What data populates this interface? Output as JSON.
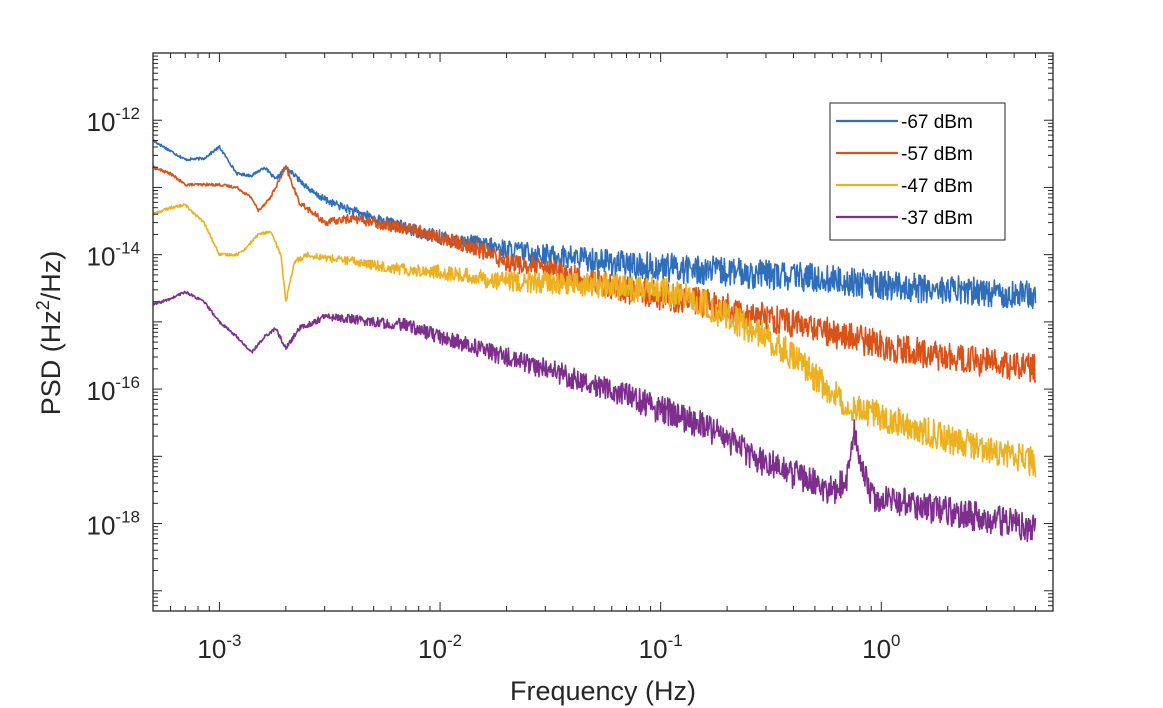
{
  "chart_data": {
    "type": "line",
    "title": "",
    "xlabel": "Frequency (Hz)",
    "ylabel_base": "PSD (Hz",
    "ylabel_sup": "2",
    "ylabel_tail": "/Hz)",
    "xscale": "log",
    "yscale": "log",
    "xlim": [
      0.0005,
      6.0
    ],
    "ylim": [
      5e-20,
      1e-11
    ],
    "x_ticks": [
      {
        "base": "10",
        "exp": "-3",
        "value": 0.001
      },
      {
        "base": "10",
        "exp": "-2",
        "value": 0.01
      },
      {
        "base": "10",
        "exp": "-1",
        "value": 0.1
      },
      {
        "base": "10",
        "exp": "0",
        "value": 1
      }
    ],
    "y_ticks": [
      {
        "base": "10",
        "exp": "-12",
        "value": 1e-12
      },
      {
        "base": "10",
        "exp": "-14",
        "value": 1e-14
      },
      {
        "base": "10",
        "exp": "-16",
        "value": 1e-16
      },
      {
        "base": "10",
        "exp": "-18",
        "value": 1e-18
      }
    ],
    "legend_position": "top-right",
    "grid": false,
    "series": [
      {
        "name": "-67 dBm",
        "color": "#2F6EBA",
        "x": [
          0.0005,
          0.0006,
          0.0007,
          0.00085,
          0.001,
          0.0012,
          0.0014,
          0.0016,
          0.0018,
          0.002,
          0.0023,
          0.0027,
          0.0032,
          0.004,
          0.005,
          0.007,
          0.01,
          0.015,
          0.02,
          0.03,
          0.05,
          0.07,
          0.1,
          0.15,
          0.2,
          0.3,
          0.5,
          0.7,
          1.0,
          1.5,
          2.0,
          3.0,
          5.0
        ],
        "y": [
          5e-13,
          3.5e-13,
          2.6e-13,
          2.7e-13,
          4e-13,
          1.6e-13,
          1.5e-13,
          2e-13,
          1.3e-13,
          2e-13,
          1.3e-13,
          8e-14,
          6e-14,
          4.5e-14,
          3.5e-14,
          2.5e-14,
          1.8e-14,
          1.4e-14,
          1.2e-14,
          1e-14,
          8.5e-15,
          7e-15,
          6.5e-15,
          6e-15,
          5.5e-15,
          5e-15,
          4.5e-15,
          4e-15,
          3.5e-15,
          3.2e-15,
          3e-15,
          2.8e-15,
          2.5e-15
        ]
      },
      {
        "name": "-57 dBm",
        "color": "#D95319",
        "x": [
          0.0005,
          0.0006,
          0.0007,
          0.00085,
          0.001,
          0.0012,
          0.0014,
          0.0015,
          0.0017,
          0.002,
          0.0023,
          0.0027,
          0.003,
          0.004,
          0.005,
          0.007,
          0.01,
          0.015,
          0.02,
          0.03,
          0.05,
          0.07,
          0.1,
          0.15,
          0.2,
          0.3,
          0.5,
          0.7,
          1.0,
          1.5,
          2.0,
          3.0,
          5.0
        ],
        "y": [
          2e-13,
          1.6e-13,
          1.1e-13,
          1.1e-13,
          1.1e-13,
          1e-13,
          7e-14,
          4.5e-14,
          7e-14,
          2e-13,
          6e-14,
          4e-14,
          3e-14,
          3.5e-14,
          3e-14,
          2.5e-14,
          1.8e-14,
          1.2e-14,
          8e-15,
          6e-15,
          4e-15,
          3e-15,
          2.5e-15,
          2e-15,
          1.6e-15,
          1.2e-15,
          8e-16,
          6e-16,
          4.5e-16,
          3.5e-16,
          3e-16,
          2.5e-16,
          2e-16
        ]
      },
      {
        "name": "-47 dBm",
        "color": "#EDB120",
        "x": [
          0.0005,
          0.0006,
          0.0007,
          0.00085,
          0.001,
          0.0012,
          0.0013,
          0.0015,
          0.0017,
          0.0019,
          0.002,
          0.0022,
          0.0025,
          0.003,
          0.004,
          0.005,
          0.007,
          0.01,
          0.015,
          0.02,
          0.03,
          0.05,
          0.07,
          0.1,
          0.15,
          0.2,
          0.3,
          0.4,
          0.5,
          0.7,
          1.0,
          1.5,
          2.0,
          3.0,
          4.0,
          5.0
        ],
        "y": [
          4e-14,
          5e-14,
          5.5e-14,
          3e-14,
          1e-14,
          1e-14,
          1.2e-14,
          2e-14,
          2.2e-14,
          1e-14,
          2e-15,
          8e-15,
          1e-14,
          9e-15,
          8e-15,
          7e-15,
          6e-15,
          5.5e-15,
          4.5e-15,
          4e-15,
          3.8e-15,
          3.5e-15,
          3.2e-15,
          2.8e-15,
          2e-15,
          1.2e-15,
          6e-16,
          3e-16,
          1.5e-16,
          6e-17,
          4e-17,
          2.5e-17,
          1.8e-17,
          1.3e-17,
          1e-17,
          8e-18
        ]
      },
      {
        "name": "-37 dBm",
        "color": "#7E2F8E",
        "x": [
          0.0005,
          0.0006,
          0.0007,
          0.00085,
          0.001,
          0.0012,
          0.0014,
          0.0016,
          0.0018,
          0.002,
          0.0023,
          0.0027,
          0.003,
          0.004,
          0.005,
          0.007,
          0.01,
          0.015,
          0.02,
          0.03,
          0.05,
          0.07,
          0.1,
          0.15,
          0.2,
          0.3,
          0.5,
          0.6,
          0.7,
          0.75,
          0.8,
          0.9,
          1.0,
          1.5,
          2.0,
          3.0,
          4.0,
          5.0
        ],
        "y": [
          1.8e-15,
          2.2e-15,
          2.8e-15,
          2e-15,
          1e-15,
          6e-16,
          3.5e-16,
          6e-16,
          8e-16,
          4e-16,
          8e-16,
          1e-15,
          1.2e-15,
          1.1e-15,
          1e-15,
          9e-16,
          6e-16,
          4e-16,
          3e-16,
          2e-16,
          1.2e-16,
          8e-17,
          5e-17,
          3e-17,
          1.8e-17,
          8e-18,
          4e-18,
          3e-18,
          5e-18,
          2.5e-17,
          8e-18,
          2.5e-18,
          2.5e-18,
          1.8e-18,
          1.5e-18,
          1.2e-18,
          1e-18,
          8e-19
        ]
      }
    ]
  }
}
